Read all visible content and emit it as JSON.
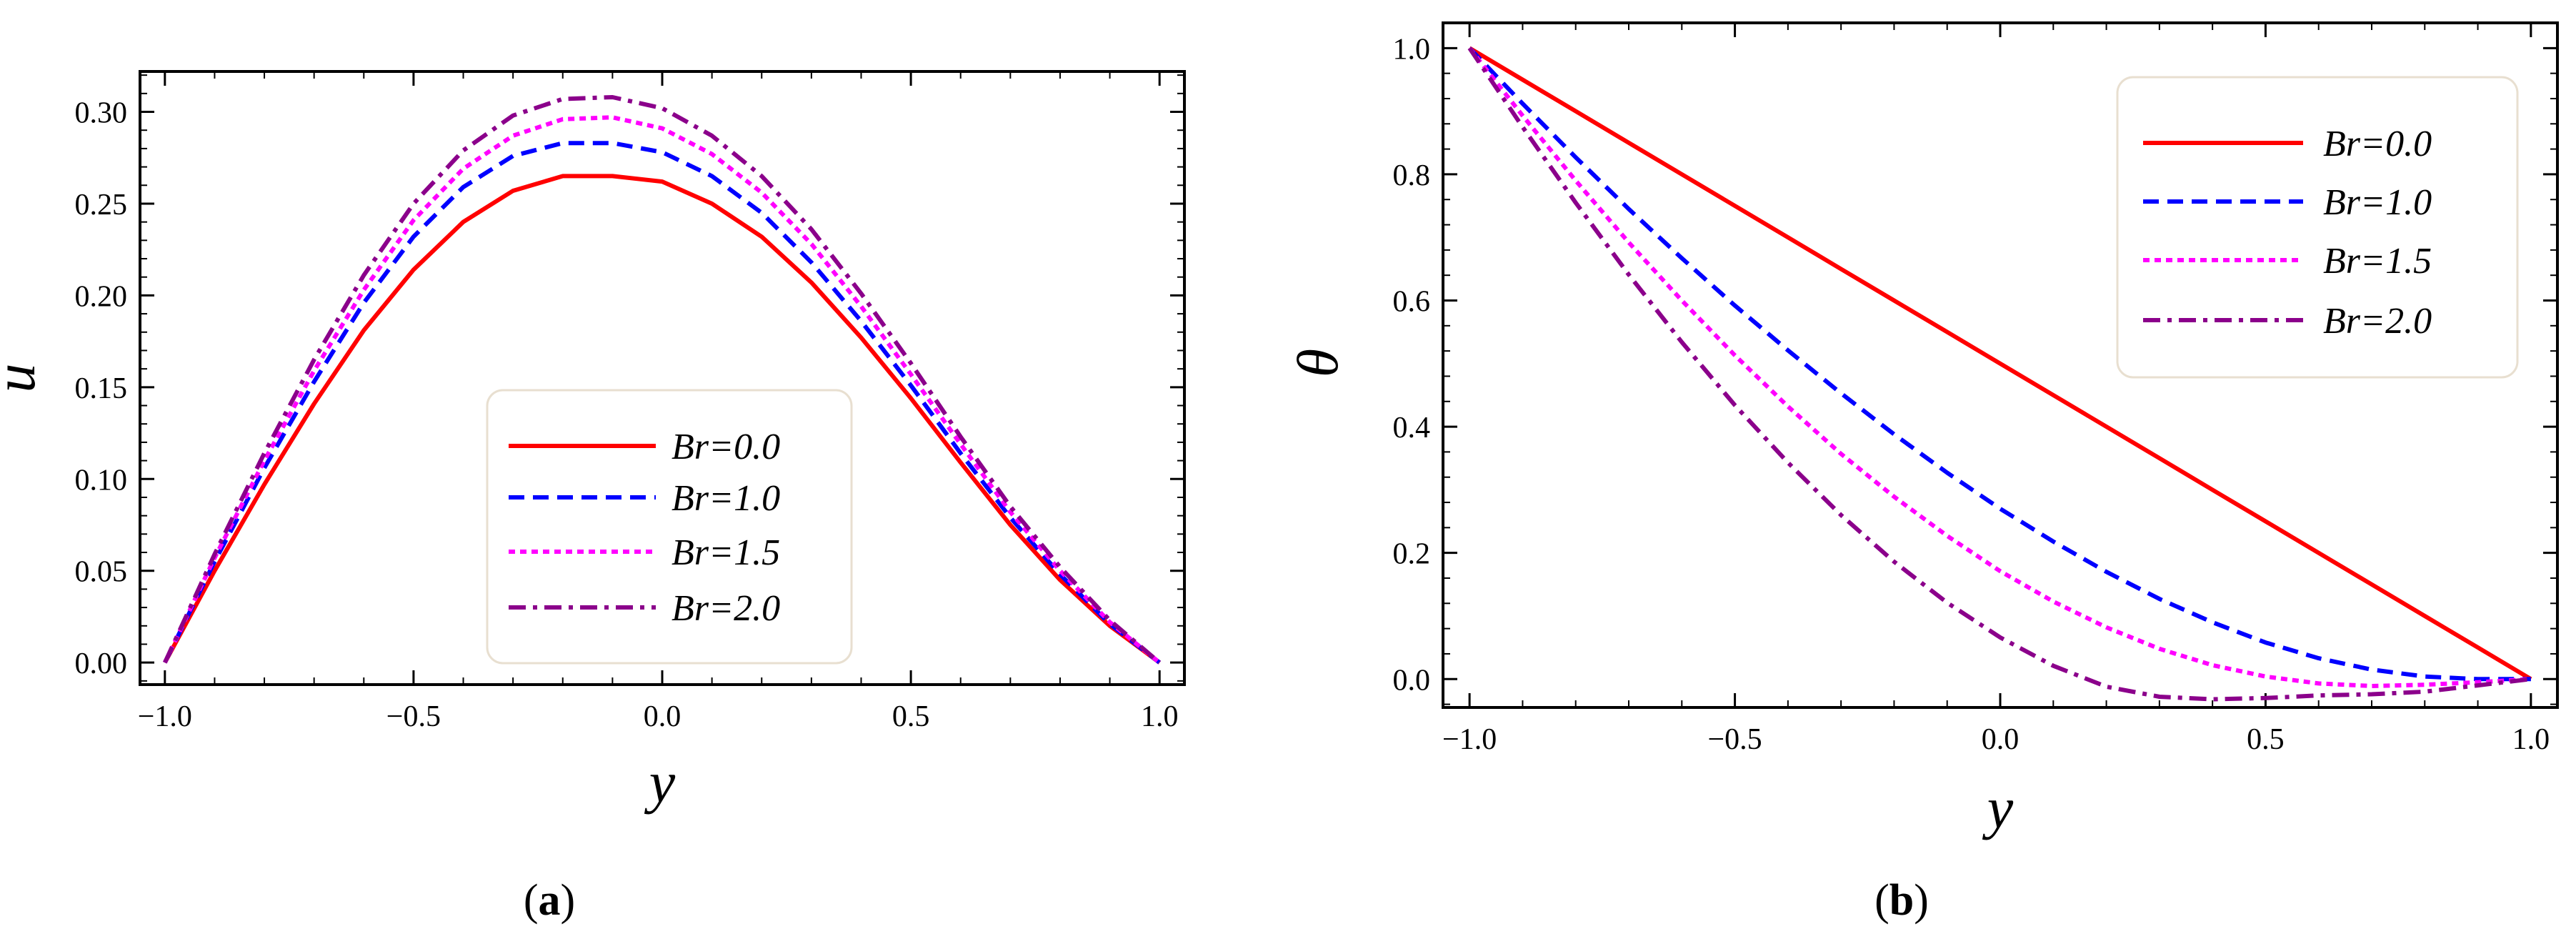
{
  "chart_data": [
    {
      "type": "line",
      "panel_label": "a",
      "title": "",
      "xlabel": "y",
      "ylabel": "u",
      "xlim": [
        -1.05,
        1.05
      ],
      "ylim": [
        -0.012,
        0.322
      ],
      "xticks": [
        -1.0,
        -0.5,
        0.0,
        0.5,
        1.0
      ],
      "xtick_labels": [
        "−1.0",
        "−0.5",
        "0.0",
        "0.5",
        "1.0"
      ],
      "yticks": [
        0.0,
        0.05,
        0.1,
        0.15,
        0.2,
        0.25,
        0.3
      ],
      "ytick_labels": [
        "0.00",
        "0.05",
        "0.10",
        "0.15",
        "0.20",
        "0.25",
        "0.30"
      ],
      "legend_position": "center",
      "x": [
        -1.0,
        -0.9,
        -0.8,
        -0.7,
        -0.6,
        -0.5,
        -0.4,
        -0.3,
        -0.2,
        -0.1,
        0.0,
        0.1,
        0.2,
        0.3,
        0.4,
        0.5,
        0.6,
        0.7,
        0.8,
        0.9,
        1.0
      ],
      "series": [
        {
          "name": "Br=0.0",
          "color": "#ff0000",
          "dash": "solid",
          "values": [
            0.0,
            0.05,
            0.097,
            0.141,
            0.181,
            0.214,
            0.24,
            0.257,
            0.265,
            0.265,
            0.262,
            0.25,
            0.232,
            0.207,
            0.177,
            0.144,
            0.109,
            0.075,
            0.045,
            0.02,
            0.0
          ]
        },
        {
          "name": "Br=1.0",
          "color": "#0000ff",
          "dash": "dashed",
          "values": [
            0.0,
            0.055,
            0.106,
            0.153,
            0.196,
            0.232,
            0.259,
            0.276,
            0.283,
            0.283,
            0.278,
            0.265,
            0.245,
            0.218,
            0.186,
            0.151,
            0.114,
            0.079,
            0.048,
            0.021,
            0.0
          ]
        },
        {
          "name": "Br=1.5",
          "color": "#ff00ff",
          "dash": "dotted",
          "values": [
            0.0,
            0.057,
            0.11,
            0.159,
            0.203,
            0.241,
            0.269,
            0.287,
            0.296,
            0.297,
            0.291,
            0.277,
            0.256,
            0.228,
            0.194,
            0.157,
            0.119,
            0.082,
            0.05,
            0.022,
            0.0
          ]
        },
        {
          "name": "Br=2.0",
          "color": "#8b008b",
          "dash": "dashdot",
          "values": [
            0.0,
            0.059,
            0.114,
            0.165,
            0.211,
            0.25,
            0.279,
            0.298,
            0.307,
            0.308,
            0.302,
            0.287,
            0.265,
            0.236,
            0.201,
            0.163,
            0.123,
            0.085,
            0.052,
            0.023,
            0.0
          ]
        }
      ]
    },
    {
      "type": "line",
      "panel_label": "b",
      "title": "",
      "xlabel": "y",
      "ylabel": "θ",
      "xlim": [
        -1.05,
        1.05
      ],
      "ylim": [
        -0.045,
        1.04
      ],
      "xticks": [
        -1.0,
        -0.5,
        0.0,
        0.5,
        1.0
      ],
      "xtick_labels": [
        "−1.0",
        "−0.5",
        "0.0",
        "0.5",
        "1.0"
      ],
      "yticks": [
        0.0,
        0.2,
        0.4,
        0.6,
        0.8,
        1.0
      ],
      "ytick_labels": [
        "0.0",
        "0.2",
        "0.4",
        "0.6",
        "0.8",
        "1.0"
      ],
      "legend_position": "top-right",
      "x": [
        -1.0,
        -0.9,
        -0.8,
        -0.7,
        -0.6,
        -0.5,
        -0.4,
        -0.3,
        -0.2,
        -0.1,
        0.0,
        0.1,
        0.2,
        0.3,
        0.4,
        0.5,
        0.6,
        0.7,
        0.8,
        0.9,
        1.0
      ],
      "series": [
        {
          "name": "Br=0.0",
          "color": "#ff0000",
          "dash": "solid",
          "values": [
            1.0,
            0.95,
            0.9,
            0.85,
            0.8,
            0.75,
            0.7,
            0.65,
            0.6,
            0.55,
            0.5,
            0.45,
            0.4,
            0.35,
            0.3,
            0.25,
            0.2,
            0.15,
            0.1,
            0.05,
            0.0
          ]
        },
        {
          "name": "Br=1.0",
          "color": "#0000ff",
          "dash": "dashed",
          "values": [
            1.0,
            0.912,
            0.827,
            0.745,
            0.667,
            0.592,
            0.521,
            0.453,
            0.388,
            0.327,
            0.27,
            0.218,
            0.17,
            0.127,
            0.09,
            0.058,
            0.033,
            0.015,
            0.004,
            0.0,
            0.0
          ]
        },
        {
          "name": "Br=1.5",
          "color": "#ff00ff",
          "dash": "dotted",
          "values": [
            1.0,
            0.893,
            0.79,
            0.692,
            0.6,
            0.513,
            0.432,
            0.357,
            0.289,
            0.227,
            0.171,
            0.123,
            0.082,
            0.048,
            0.022,
            0.004,
            -0.007,
            -0.011,
            -0.009,
            -0.005,
            0.0
          ]
        },
        {
          "name": "Br=2.0",
          "color": "#8b008b",
          "dash": "dashdot",
          "values": [
            1.0,
            0.875,
            0.755,
            0.641,
            0.534,
            0.434,
            0.343,
            0.26,
            0.186,
            0.121,
            0.066,
            0.021,
            -0.012,
            -0.028,
            -0.032,
            -0.03,
            -0.026,
            -0.024,
            -0.02,
            -0.01,
            0.0
          ]
        }
      ]
    }
  ]
}
